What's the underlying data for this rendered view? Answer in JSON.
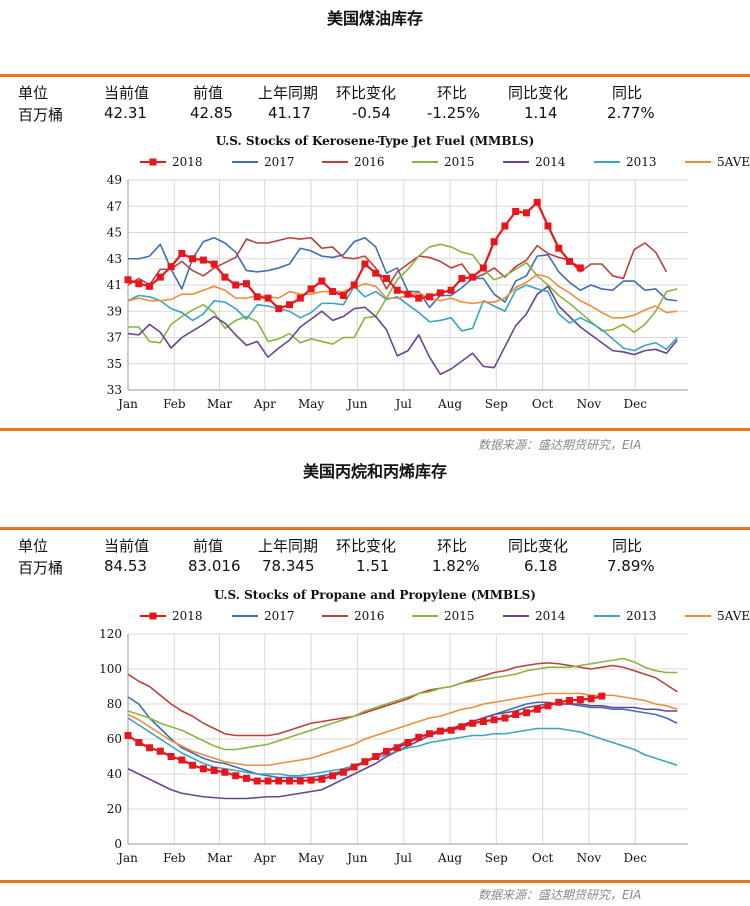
{
  "sections": [
    {
      "title": "美国煤油库存",
      "stats": {
        "headers": [
          "单位",
          "当前值",
          "前值",
          "上年同期",
          "环比变化",
          "环比",
          "同比变化",
          "同比"
        ],
        "values": [
          "百万桶",
          "42.31",
          "42.85",
          "41.17",
          "-0.54",
          "-1.25%",
          "1.14",
          "2.77%"
        ]
      },
      "source": "数据来源：盛达期货研究，EIA"
    },
    {
      "title": "美国丙烷和丙烯库存",
      "stats": {
        "headers": [
          "单位",
          "当前值",
          "前值",
          "上年同期",
          "环比变化",
          "环比",
          "同比变化",
          "同比"
        ],
        "values": [
          "百万桶",
          "84.53",
          "83.016",
          "78.345",
          "1.51",
          "1.82%",
          "6.18",
          "7.89%"
        ]
      },
      "source": "数据来源：盛达期货研究，EIA"
    }
  ],
  "colors": {
    "rule": "#e87722",
    "2018": "#e8161b",
    "2017": "#3f6fb0",
    "2016": "#b8413c",
    "2015": "#8bb43c",
    "2014": "#6a4493",
    "2013": "#3aa3c4",
    "5AVE": "#f08c3a"
  },
  "chart_data": [
    {
      "type": "line",
      "title": "U.S. Stocks of Kerosene-Type Jet Fuel (MMBLS)",
      "xlabel": "",
      "ylabel": "",
      "ylim": [
        33,
        49
      ],
      "yticks": [
        33,
        35,
        37,
        39,
        41,
        43,
        45,
        47,
        49
      ],
      "xlim": [
        0,
        52
      ],
      "xticks": [
        {
          "label": "Jan",
          "pos": 0
        },
        {
          "label": "Feb",
          "pos": 4.3
        },
        {
          "label": "Mar",
          "pos": 8.5
        },
        {
          "label": "Apr",
          "pos": 12.7
        },
        {
          "label": "May",
          "pos": 17
        },
        {
          "label": "Jun",
          "pos": 21.3
        },
        {
          "label": "Jul",
          "pos": 25.6
        },
        {
          "label": "Aug",
          "pos": 29.9
        },
        {
          "label": "Sep",
          "pos": 34.2
        },
        {
          "label": "Oct",
          "pos": 38.5
        },
        {
          "label": "Nov",
          "pos": 42.8
        },
        {
          "label": "Dec",
          "pos": 47.1
        }
      ],
      "legend": "top",
      "grid": true,
      "series": [
        {
          "name": "2018",
          "values": [
            41.4,
            41.1,
            40.9,
            41.6,
            42.4,
            43.4,
            43.0,
            42.9,
            42.6,
            41.6,
            41.0,
            41.1,
            40.1,
            40.0,
            39.2,
            39.5,
            40.0,
            40.7,
            41.3,
            40.5,
            40.2,
            41.0,
            42.6,
            41.9,
            41.5,
            40.6,
            40.3,
            40.0,
            40.1,
            40.4,
            40.6,
            41.5,
            41.6,
            42.3,
            44.3,
            45.5,
            46.6,
            46.5,
            47.3,
            45.5,
            43.8,
            42.8,
            42.3
          ]
        },
        {
          "name": "2017",
          "values": [
            43.0,
            43.0,
            43.2,
            44.1,
            42.2,
            40.7,
            43.0,
            44.3,
            44.6,
            44.2,
            43.5,
            42.1,
            42.0,
            42.1,
            42.3,
            42.6,
            43.8,
            43.6,
            43.2,
            43.1,
            43.3,
            44.3,
            44.6,
            43.9,
            41.9,
            42.3,
            40.5,
            40.5,
            39.3,
            40.2,
            40.2,
            40.8,
            41.5,
            41.5,
            40.3,
            39.7,
            41.3,
            41.7,
            43.2,
            43.3,
            42.0,
            41.2,
            40.6,
            41.0,
            40.7,
            40.6,
            41.3,
            41.3,
            40.6,
            40.7,
            39.9,
            39.8
          ]
        },
        {
          "name": "2016",
          "values": [
            41.0,
            41.5,
            41.0,
            42.2,
            42.2,
            42.8,
            42.1,
            41.7,
            42.3,
            42.7,
            43.1,
            44.5,
            44.2,
            44.2,
            44.4,
            44.6,
            44.5,
            44.6,
            43.8,
            43.9,
            43.1,
            43.0,
            43.2,
            42.3,
            40.7,
            42.0,
            42.6,
            43.2,
            43.1,
            42.8,
            42.3,
            42.6,
            41.5,
            41.8,
            42.3,
            41.6,
            42.4,
            42.9,
            44.0,
            43.4,
            43.1,
            42.9,
            42.0,
            42.6,
            42.6,
            41.7,
            41.5,
            43.7,
            44.2,
            43.5,
            42.0
          ]
        },
        {
          "name": "2015",
          "values": [
            37.8,
            37.8,
            36.7,
            36.6,
            38.0,
            38.6,
            39.1,
            39.5,
            38.9,
            37.7,
            38.3,
            38.6,
            38.2,
            36.7,
            36.9,
            37.3,
            36.6,
            36.9,
            36.7,
            36.5,
            37.0,
            37.0,
            38.5,
            38.6,
            40.0,
            41.4,
            42.2,
            43.2,
            43.9,
            44.1,
            43.9,
            43.5,
            43.3,
            42.2,
            41.4,
            41.7,
            42.2,
            42.7,
            41.7,
            41.0,
            40.2,
            39.6,
            38.9,
            38.2,
            37.5,
            37.6,
            38.0,
            37.4,
            38.0,
            39.0,
            40.5,
            40.7
          ]
        },
        {
          "name": "2014",
          "values": [
            37.3,
            37.2,
            38.0,
            37.4,
            36.2,
            37.0,
            37.5,
            38.0,
            38.6,
            38.1,
            37.2,
            36.4,
            36.7,
            35.5,
            36.2,
            36.8,
            37.8,
            38.4,
            39.0,
            38.3,
            38.6,
            39.2,
            39.3,
            38.6,
            37.6,
            35.6,
            36.0,
            37.2,
            35.5,
            34.2,
            34.6,
            35.2,
            35.8,
            34.8,
            34.7,
            36.3,
            37.9,
            38.8,
            40.3,
            40.9,
            39.4,
            38.6,
            37.8,
            37.2,
            36.6,
            36.0,
            35.9,
            35.7,
            36.0,
            36.1,
            35.8,
            36.8
          ]
        },
        {
          "name": "2013",
          "values": [
            39.8,
            40.2,
            40.1,
            39.8,
            39.2,
            38.9,
            38.3,
            38.8,
            39.8,
            39.7,
            39.2,
            38.4,
            39.5,
            39.4,
            39.2,
            39.0,
            38.5,
            38.9,
            39.6,
            39.6,
            39.5,
            40.9,
            40.1,
            40.5,
            39.9,
            40.1,
            39.5,
            38.9,
            38.2,
            38.3,
            38.5,
            37.5,
            37.7,
            39.8,
            39.4,
            39.0,
            40.6,
            41.0,
            40.7,
            40.5,
            38.8,
            38.1,
            38.5,
            38.1,
            37.6,
            36.9,
            36.2,
            36.0,
            36.4,
            36.6,
            36.1,
            37.0
          ]
        },
        {
          "name": "5AVE",
          "values": [
            39.8,
            40.0,
            39.8,
            39.8,
            39.9,
            40.3,
            40.3,
            40.6,
            40.9,
            40.6,
            40.0,
            40.0,
            40.2,
            40.1,
            40.0,
            40.5,
            40.3,
            40.3,
            40.5,
            40.5,
            40.5,
            40.8,
            41.1,
            40.9,
            40.0,
            40.0,
            40.2,
            40.4,
            40.0,
            39.8,
            40.0,
            39.7,
            39.6,
            39.7,
            39.7,
            40.0,
            40.8,
            41.2,
            41.8,
            41.6,
            40.9,
            40.4,
            39.8,
            39.4,
            38.9,
            38.5,
            38.5,
            38.7,
            39.1,
            39.4,
            38.9,
            39.0
          ]
        }
      ]
    },
    {
      "type": "line",
      "title": "U.S. Stocks of Propane and Propylene (MMBLS)",
      "xlabel": "",
      "ylabel": "",
      "ylim": [
        0,
        120
      ],
      "yticks": [
        0,
        20,
        40,
        60,
        80,
        100,
        120
      ],
      "xlim": [
        0,
        52
      ],
      "xticks": [
        {
          "label": "Jan",
          "pos": 0
        },
        {
          "label": "Feb",
          "pos": 4.3
        },
        {
          "label": "Mar",
          "pos": 8.5
        },
        {
          "label": "Apr",
          "pos": 12.7
        },
        {
          "label": "May",
          "pos": 17
        },
        {
          "label": "Jun",
          "pos": 21.3
        },
        {
          "label": "Jul",
          "pos": 25.6
        },
        {
          "label": "Aug",
          "pos": 29.9
        },
        {
          "label": "Sep",
          "pos": 34.2
        },
        {
          "label": "Oct",
          "pos": 38.5
        },
        {
          "label": "Nov",
          "pos": 42.8
        },
        {
          "label": "Dec",
          "pos": 47.1
        }
      ],
      "legend": "top",
      "grid": true,
      "series": [
        {
          "name": "2018",
          "values": [
            62,
            58,
            55,
            53,
            50,
            48,
            45,
            43,
            42,
            41,
            39,
            37.5,
            36,
            36,
            36,
            36,
            36,
            36.5,
            37,
            39,
            41,
            44,
            47,
            50,
            53,
            55,
            58,
            61,
            63,
            64.5,
            65,
            67,
            69,
            70,
            71,
            72,
            74,
            75,
            77,
            79,
            81,
            82,
            82.5,
            83,
            84.5
          ]
        },
        {
          "name": "2017",
          "values": [
            84,
            80,
            72,
            66,
            60,
            55,
            52,
            49,
            47,
            46,
            44,
            42,
            40,
            39,
            38,
            38,
            38,
            38,
            39,
            40,
            42,
            44,
            47,
            50,
            53,
            56,
            59,
            61,
            63,
            65,
            66,
            68,
            70,
            72,
            74,
            76,
            78,
            80,
            81,
            81,
            80,
            80,
            79,
            78,
            78,
            77,
            77,
            76,
            75,
            74,
            72,
            69
          ]
        },
        {
          "name": "2016",
          "values": [
            97,
            93,
            90,
            85,
            80,
            76,
            73,
            69,
            66,
            63,
            62,
            62,
            62,
            62,
            63,
            65,
            67,
            69,
            70,
            71,
            72,
            73,
            75,
            77,
            79,
            81,
            83,
            86,
            88,
            89,
            90,
            92,
            94,
            96,
            98,
            99,
            101,
            102,
            103,
            103.5,
            103,
            102,
            101,
            100,
            101,
            102,
            101,
            99,
            97,
            95,
            91,
            87
          ]
        },
        {
          "name": "2015",
          "values": [
            76,
            74,
            72,
            69,
            67,
            65,
            62,
            59,
            56,
            54,
            54,
            55,
            56,
            57,
            59,
            61,
            63,
            65,
            67,
            69,
            71,
            73,
            76,
            78,
            80,
            82,
            84,
            86,
            87,
            89,
            90,
            92,
            93,
            94,
            95,
            96,
            97,
            99,
            100,
            101,
            101,
            101,
            102,
            103,
            104,
            105,
            106,
            104,
            101,
            99,
            98,
            98
          ]
        },
        {
          "name": "2014",
          "values": [
            43,
            40,
            37,
            34,
            31,
            29,
            28,
            27,
            26.5,
            26,
            26,
            26,
            26.5,
            27,
            27,
            28,
            29,
            30,
            31,
            34,
            37,
            40,
            43,
            46,
            50,
            53,
            56,
            59,
            62,
            64,
            66,
            68,
            70,
            72,
            74,
            75,
            76,
            78,
            79,
            80,
            80,
            80,
            80,
            79,
            79,
            78,
            78,
            78,
            77,
            77,
            76,
            76
          ]
        },
        {
          "name": "2013",
          "values": [
            72,
            68,
            64,
            60,
            56,
            52,
            49,
            46,
            44,
            43,
            42,
            41,
            40,
            40,
            40,
            39,
            39,
            40,
            41,
            42,
            43,
            45,
            47,
            49,
            51,
            53,
            55,
            56,
            58,
            59,
            60,
            61,
            62,
            62,
            63,
            63,
            64,
            65,
            66,
            66,
            66,
            65,
            64,
            62,
            60,
            58,
            56,
            54,
            51,
            49,
            47,
            45
          ]
        },
        {
          "name": "5AVE",
          "values": [
            74,
            71,
            67,
            63,
            59,
            56,
            53,
            51,
            49,
            47,
            46,
            45,
            45,
            45,
            46,
            47,
            48,
            49,
            51,
            53,
            55,
            57,
            60,
            62,
            64,
            66,
            68,
            70,
            72,
            73,
            75,
            77,
            78,
            80,
            81,
            82,
            83,
            84,
            85,
            86,
            86,
            86,
            86,
            85,
            85,
            85,
            84,
            83,
            82,
            80,
            79,
            77
          ]
        }
      ]
    }
  ]
}
